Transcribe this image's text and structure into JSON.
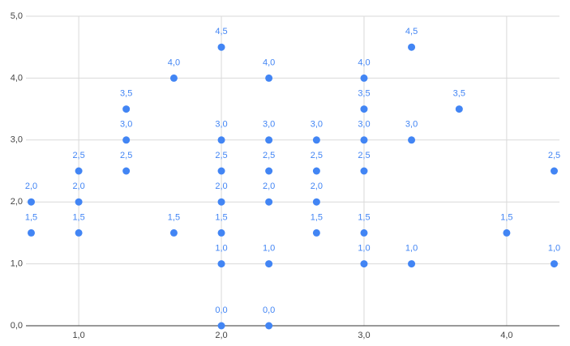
{
  "chart_data": {
    "type": "scatter",
    "color": "#4285f4",
    "grid": true,
    "x": [
      0.667,
      0.667,
      1.0,
      1.0,
      1.0,
      1.333,
      1.333,
      1.333,
      1.667,
      1.667,
      2.0,
      2.0,
      2.0,
      2.0,
      2.0,
      2.0,
      2.0,
      2.333,
      2.333,
      2.333,
      2.333,
      2.333,
      2.333,
      2.667,
      2.667,
      2.667,
      2.667,
      3.0,
      3.0,
      3.0,
      3.0,
      3.0,
      3.0,
      3.333,
      3.333,
      3.333,
      3.667,
      4.0,
      4.333,
      4.333
    ],
    "values": [
      2.0,
      1.5,
      2.5,
      2.0,
      1.5,
      3.5,
      3.0,
      2.5,
      4.0,
      1.5,
      4.5,
      3.0,
      2.5,
      2.0,
      1.5,
      1.0,
      0.0,
      4.0,
      3.0,
      2.5,
      2.0,
      1.0,
      0.0,
      3.0,
      2.5,
      2.0,
      1.5,
      4.0,
      3.5,
      3.0,
      2.5,
      1.5,
      1.0,
      4.5,
      3.0,
      1.0,
      3.5,
      1.5,
      2.5,
      1.0
    ],
    "value_labels": [
      "2,0",
      "1,5",
      "2,5",
      "2,0",
      "1,5",
      "3,5",
      "3,0",
      "2,5",
      "4,0",
      "1,5",
      "4,5",
      "3,0",
      "2,5",
      "2,0",
      "1,5",
      "1,0",
      "0,0",
      "4,0",
      "3,0",
      "2,5",
      "2,0",
      "1,0",
      "0,0",
      "3,0",
      "2,5",
      "2,0",
      "1,5",
      "4,0",
      "3,5",
      "3,0",
      "2,5",
      "1,5",
      "1,0",
      "4,5",
      "3,0",
      "1,0",
      "3,5",
      "1,5",
      "2,5",
      "1,0"
    ],
    "xlim": [
      0.63,
      4.37
    ],
    "xticks": [
      {
        "value": 1,
        "label": "1,0"
      },
      {
        "value": 2,
        "label": "2,0"
      },
      {
        "value": 3,
        "label": "3,0"
      },
      {
        "value": 4,
        "label": "4,0"
      }
    ],
    "ylim": [
      0,
      5
    ],
    "yticks": [
      {
        "value": 0,
        "label": "0,0"
      },
      {
        "value": 1,
        "label": "1,0"
      },
      {
        "value": 2,
        "label": "2,0"
      },
      {
        "value": 3,
        "label": "3,0"
      },
      {
        "value": 4,
        "label": "4,0"
      },
      {
        "value": 5,
        "label": "5,0"
      }
    ]
  }
}
